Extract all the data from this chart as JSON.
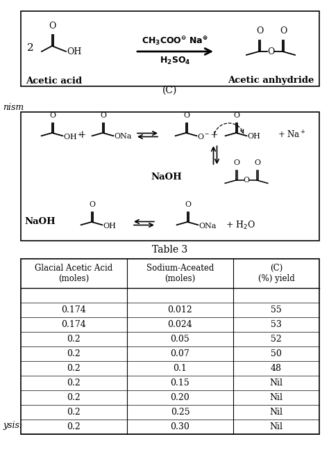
{
  "title": "Table 3",
  "col_headers": [
    "Glacial Acetic Acid\n(moles)",
    "Sodium-Aceated\n(moles)",
    "(C)\n(%) yield"
  ],
  "rows": [
    [
      "0.174",
      "0.012",
      "55"
    ],
    [
      "0.174",
      "0.024",
      "53"
    ],
    [
      "0.2",
      "0.05",
      "52"
    ],
    [
      "0.2",
      "0.07",
      "50"
    ],
    [
      "0.2",
      "0.1",
      "48"
    ],
    [
      "0.2",
      "0.15",
      "Nil"
    ],
    [
      "0.2",
      "0.20",
      "Nil"
    ],
    [
      "0.2",
      "0.25",
      "Nil"
    ],
    [
      "0.2",
      "0.30",
      "Nil"
    ]
  ],
  "label_C": "(C)",
  "label_nism": "nism",
  "label_ysis": "ysis:",
  "bg_color": "#ffffff"
}
